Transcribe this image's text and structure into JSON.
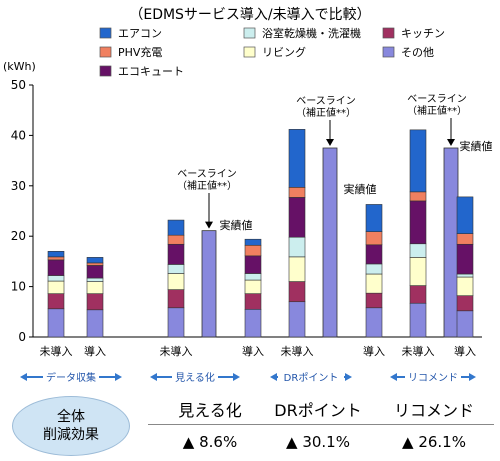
{
  "chart_data": {
    "type": "bar",
    "title": "（EDMSサービス導入/未導入で比較）",
    "ylabel": "(kWh)",
    "ylim": [
      0,
      50
    ],
    "yticks": [
      0,
      10,
      20,
      30,
      40,
      50
    ],
    "grid": false,
    "legend_position": "top",
    "legend": [
      {
        "name": "エアコン",
        "color": "#2266cc"
      },
      {
        "name": "浴室乾燥機・洗濯機",
        "color": "#cceeee"
      },
      {
        "name": "キッチン",
        "color": "#a03060"
      },
      {
        "name": "PHV充電",
        "color": "#f08060"
      },
      {
        "name": "リビング",
        "color": "#ffffcc"
      },
      {
        "name": "その他",
        "color": "#8888dd"
      },
      {
        "name": "エコキュート",
        "color": "#661166"
      }
    ],
    "stack_order": [
      "その他",
      "キッチン",
      "リビング",
      "浴室乾燥機・洗濯機",
      "エコキュート",
      "PHV充電",
      "エアコン"
    ],
    "bars": [
      {
        "label": "未導入",
        "group": 0,
        "segments": {
          "その他": 5.6,
          "キッチン": 3.0,
          "リビング": 2.5,
          "浴室乾燥機・洗濯機": 1.1,
          "エコキュート": 3.1,
          "PHV充電": 0.6,
          "エアコン": 1.1
        }
      },
      {
        "label": "導入",
        "group": 0,
        "segments": {
          "その他": 5.4,
          "キッチン": 3.2,
          "リビング": 2.4,
          "浴室乾燥機・洗濯機": 0.7,
          "エコキュート": 2.5,
          "PHV充電": 0.5,
          "エアコン": 1.1
        }
      },
      {
        "label": "未導入",
        "group": 1,
        "segments": {
          "その他": 5.8,
          "キッチン": 3.6,
          "リビング": 3.2,
          "浴室乾燥機・洗濯機": 1.8,
          "エコキュート": 4.0,
          "PHV充電": 1.8,
          "エアコン": 3.0
        }
      },
      {
        "label": "",
        "group": 1,
        "baseline": true,
        "total": 21.1
      },
      {
        "label": "導入",
        "group": 1,
        "segments": {
          "その他": 5.5,
          "キッチン": 3.1,
          "リビング": 2.7,
          "浴室乾燥機・洗濯機": 1.3,
          "エコキュート": 3.5,
          "PHV充電": 2.1,
          "エアコン": 1.2
        }
      },
      {
        "label": "未導入",
        "group": 2,
        "segments": {
          "その他": 7.0,
          "キッチン": 4.0,
          "リビング": 4.9,
          "浴室乾燥機・洗濯機": 3.9,
          "エコキュート": 7.9,
          "PHV充電": 2.0,
          "エアコン": 11.5
        }
      },
      {
        "label": "",
        "group": 2,
        "baseline": true,
        "total": 37.5
      },
      {
        "label": "導入",
        "group": 2,
        "segments": {
          "その他": 5.8,
          "キッチン": 2.9,
          "リビング": 3.8,
          "浴室乾燥機・洗濯機": 2.0,
          "エコキュート": 3.8,
          "PHV充電": 2.6,
          "エアコン": 5.4
        }
      },
      {
        "label": "未導入",
        "group": 3,
        "segments": {
          "その他": 6.7,
          "キッチン": 3.5,
          "リビング": 5.6,
          "浴室乾燥機・洗濯機": 2.7,
          "エコキュート": 8.5,
          "PHV充電": 1.8,
          "エアコン": 12.3
        }
      },
      {
        "label": "",
        "group": 3,
        "baseline": true,
        "total": 37.5
      },
      {
        "label": "導入",
        "group": 3,
        "segments": {
          "その他": 5.2,
          "キッチン": 3.0,
          "リビング": 3.7,
          "浴室乾燥機・洗濯機": 0.6,
          "エコキュート": 5.9,
          "PHV充電": 2.1,
          "エアコン": 7.3
        }
      }
    ],
    "annotations": {
      "baseline_label": [
        "ベースライン",
        "（補正値**）"
      ],
      "actual_label": "実績値"
    },
    "group_captions": [
      "データ収集",
      "見える化",
      "DRポイント",
      "リコメンド"
    ]
  },
  "summary": {
    "overall_label": [
      "全体",
      "削減効果"
    ],
    "columns": [
      {
        "name": "見える化",
        "value": "▲  8.6%"
      },
      {
        "name": "DRポイント",
        "value": "▲  30.1%"
      },
      {
        "name": "リコメンド",
        "value": "▲  26.1%"
      }
    ]
  }
}
